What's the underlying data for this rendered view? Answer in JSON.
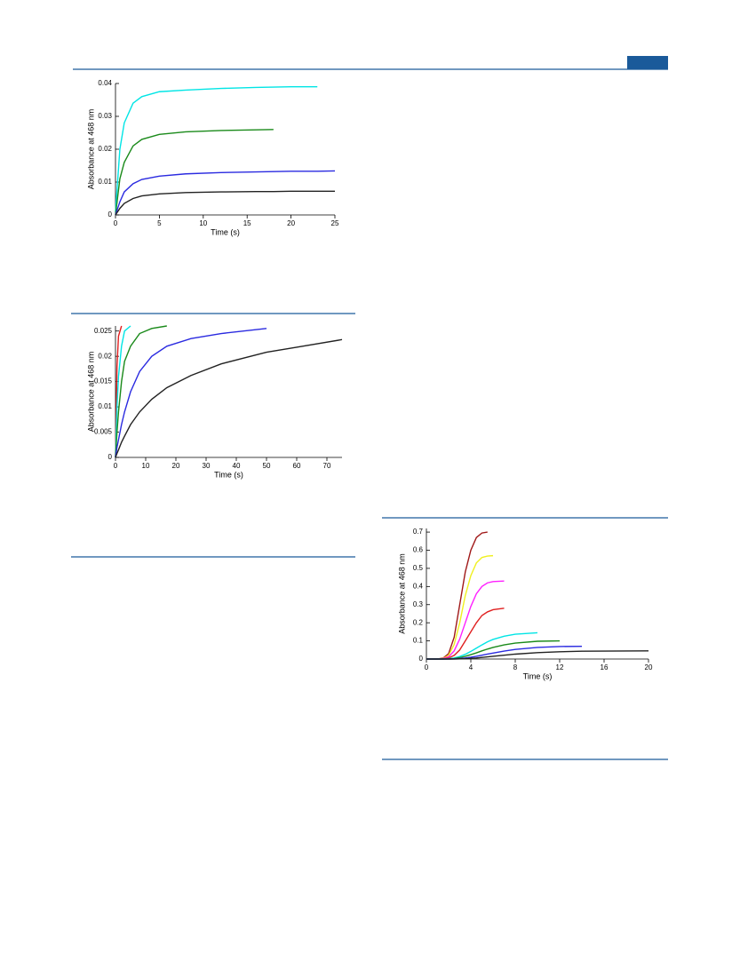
{
  "chart_data": [
    {
      "type": "line",
      "xlabel": "Time (s)",
      "ylabel": "Absorbance at 468 nm",
      "xlim": [
        0,
        25
      ],
      "xticks": [
        0,
        5,
        10,
        15,
        20,
        25
      ],
      "ylim": [
        0,
        0.04
      ],
      "yticks": [
        0,
        0.01,
        0.02,
        0.03,
        0.04
      ],
      "x": [
        0,
        0.5,
        1,
        2,
        3,
        5,
        8,
        12,
        16,
        18,
        20,
        23,
        25
      ],
      "series": [
        {
          "color": "#00e5e5",
          "values": [
            0.001,
            0.02,
            0.028,
            0.034,
            0.036,
            0.0375,
            0.038,
            0.0385,
            0.0388,
            0.0389,
            0.039,
            0.039,
            null
          ]
        },
        {
          "color": "#1a8a1a",
          "values": [
            0,
            0.011,
            0.016,
            0.021,
            0.023,
            0.0245,
            0.0253,
            0.0257,
            0.0259,
            0.026,
            null,
            null,
            null
          ]
        },
        {
          "color": "#2a2ae0",
          "values": [
            0,
            0.004,
            0.007,
            0.0095,
            0.0108,
            0.0118,
            0.0125,
            0.0129,
            0.0131,
            0.0132,
            0.0133,
            0.0133,
            0.0134
          ]
        },
        {
          "color": "#222222",
          "values": [
            0,
            0.002,
            0.0035,
            0.005,
            0.0058,
            0.0064,
            0.0068,
            0.007,
            0.0071,
            0.0071,
            0.0072,
            0.0072,
            0.0072
          ]
        }
      ]
    },
    {
      "type": "line",
      "xlabel": "Time (s)",
      "ylabel": "Absorbance at 468 nm",
      "xlim": [
        0,
        75
      ],
      "xticks": [
        0,
        10,
        20,
        30,
        40,
        50,
        60,
        70
      ],
      "ylim": [
        0,
        0.026
      ],
      "yticks": [
        0,
        0.005,
        0.01,
        0.015,
        0.02,
        0.025
      ],
      "x": [
        0,
        0.5,
        1,
        2,
        3,
        5,
        8,
        12,
        17,
        25,
        35,
        50,
        60,
        75
      ],
      "series": [
        {
          "color": "#e02020",
          "values": [
            0,
            0.018,
            0.024,
            0.026,
            null,
            null,
            null,
            null,
            null,
            null,
            null,
            null,
            null,
            null
          ]
        },
        {
          "color": "#00e5e5",
          "values": [
            0,
            0.01,
            0.016,
            0.022,
            0.025,
            0.026,
            null,
            null,
            null,
            null,
            null,
            null,
            null,
            null
          ]
        },
        {
          "color": "#1a8a1a",
          "values": [
            0,
            0.005,
            0.009,
            0.015,
            0.019,
            0.022,
            0.0245,
            0.0255,
            0.026,
            null,
            null,
            null,
            null,
            null
          ]
        },
        {
          "color": "#2a2ae0",
          "values": [
            0,
            0.002,
            0.0035,
            0.0065,
            0.009,
            0.013,
            0.017,
            0.02,
            0.022,
            0.0235,
            0.0245,
            0.0255,
            null,
            null
          ]
        },
        {
          "color": "#222222",
          "values": [
            0,
            0.0008,
            0.0015,
            0.003,
            0.0042,
            0.0065,
            0.009,
            0.0115,
            0.0138,
            0.0162,
            0.0185,
            0.0208,
            0.0218,
            0.0233
          ]
        }
      ]
    },
    {
      "type": "line",
      "xlabel": "Time (s)",
      "ylabel": "Absorbance at 468 nm",
      "xlim": [
        0,
        20
      ],
      "xticks": [
        0,
        4,
        8,
        12,
        16,
        20
      ],
      "ylim": [
        0,
        0.72
      ],
      "yticks": [
        0,
        0.1,
        0.2,
        0.3,
        0.4,
        0.5,
        0.6,
        0.7
      ],
      "x": [
        0,
        1,
        1.5,
        2,
        2.5,
        3,
        3.5,
        4,
        4.5,
        5,
        5.5,
        6,
        7,
        8,
        10,
        12,
        14,
        16,
        20
      ],
      "series": [
        {
          "color": "#a01818",
          "values": [
            0,
            0,
            0.005,
            0.03,
            0.12,
            0.3,
            0.48,
            0.6,
            0.67,
            0.695,
            0.7,
            null,
            null,
            null,
            null,
            null,
            null,
            null,
            null
          ]
        },
        {
          "color": "#f0f020",
          "values": [
            0,
            0,
            0.003,
            0.02,
            0.08,
            0.2,
            0.35,
            0.46,
            0.53,
            0.56,
            0.568,
            0.57,
            null,
            null,
            null,
            null,
            null,
            null,
            null
          ]
        },
        {
          "color": "#ff20ff",
          "values": [
            0,
            0,
            0.002,
            0.012,
            0.045,
            0.11,
            0.2,
            0.29,
            0.36,
            0.4,
            0.42,
            0.427,
            0.43,
            null,
            null,
            null,
            null,
            null,
            null
          ]
        },
        {
          "color": "#e02020",
          "values": [
            0,
            0,
            0.001,
            0.006,
            0.02,
            0.05,
            0.1,
            0.15,
            0.2,
            0.24,
            0.26,
            0.272,
            0.28,
            null,
            null,
            null,
            null,
            null,
            null
          ]
        },
        {
          "color": "#00e5e5",
          "values": [
            0,
            0,
            0,
            0.002,
            0.006,
            0.014,
            0.026,
            0.042,
            0.06,
            0.078,
            0.095,
            0.108,
            0.126,
            0.137,
            0.145,
            null,
            null,
            null,
            null
          ]
        },
        {
          "color": "#1a8a1a",
          "values": [
            0,
            0,
            0,
            0.001,
            0.003,
            0.008,
            0.015,
            0.024,
            0.034,
            0.045,
            0.055,
            0.064,
            0.078,
            0.088,
            0.098,
            0.1,
            null,
            null,
            null
          ]
        },
        {
          "color": "#2a2ae0",
          "values": [
            0,
            0,
            0,
            0,
            0.001,
            0.003,
            0.006,
            0.01,
            0.015,
            0.021,
            0.027,
            0.033,
            0.044,
            0.053,
            0.064,
            0.069,
            0.07,
            null,
            null
          ]
        },
        {
          "color": "#222222",
          "values": [
            0,
            0,
            0,
            0,
            0,
            0.001,
            0.002,
            0.004,
            0.006,
            0.009,
            0.012,
            0.015,
            0.021,
            0.027,
            0.035,
            0.04,
            0.043,
            0.044,
            0.045
          ]
        }
      ]
    }
  ]
}
